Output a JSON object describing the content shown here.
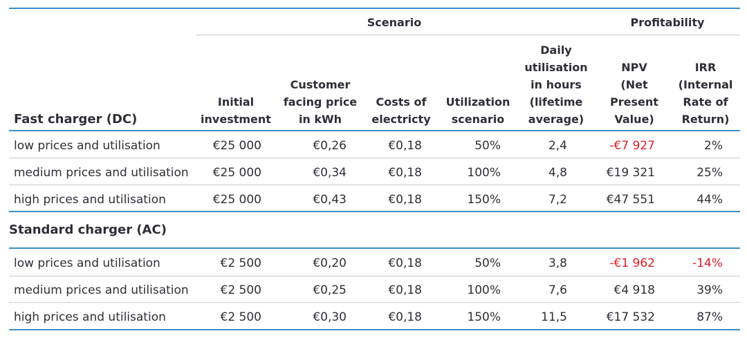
{
  "header": {
    "group_scenario": "Scenario",
    "group_profitability": "Profitability",
    "columns": [
      "Initial investment",
      "Customer facing price in kWh",
      "Costs of electricty",
      "Utilization scenario",
      "Daily utilisation in hours (lifetime average)",
      "NPV (Net Present Value)",
      "IRR (Internal Rate of Return)"
    ],
    "col_lines": [
      [
        "Initial",
        "investment"
      ],
      [
        "Customer",
        "facing price",
        "in kWh"
      ],
      [
        "Costs of",
        "electricty"
      ],
      [
        "Utilization",
        "scenario"
      ],
      [
        "Daily",
        "utilisation",
        "in hours",
        "(lifetime",
        "average)"
      ],
      [
        "NPV",
        "(Net",
        "Present",
        "Value)"
      ],
      [
        "IRR",
        "(Internal",
        "Rate of",
        "Return)"
      ]
    ]
  },
  "sections": [
    {
      "title": "Fast charger (DC)",
      "rows": [
        {
          "label": "low prices and utilisation",
          "investment": "€25 000",
          "price": "€0,26",
          "cost": "€0,18",
          "utilization": "50%",
          "hours": "2,4",
          "npv": "-€7 927",
          "irr": "2%",
          "npv_negative": true,
          "irr_negative": false
        },
        {
          "label": "medium prices and utilisation",
          "investment": "€25 000",
          "price": "€0,34",
          "cost": "€0,18",
          "utilization": "100%",
          "hours": "4,8",
          "npv": "€19 321",
          "irr": "25%",
          "npv_negative": false,
          "irr_negative": false
        },
        {
          "label": "high prices and utilisation",
          "investment": "€25 000",
          "price": "€0,43",
          "cost": "€0,18",
          "utilization": "150%",
          "hours": "7,2",
          "npv": "€47 551",
          "irr": "44%",
          "npv_negative": false,
          "irr_negative": false
        }
      ]
    },
    {
      "title": "Standard charger (AC)",
      "rows": [
        {
          "label": "low prices and utilisation",
          "investment": "€2 500",
          "price": "€0,20",
          "cost": "€0,18",
          "utilization": "50%",
          "hours": "3,8",
          "npv": "-€1 962",
          "irr": "-14%",
          "npv_negative": true,
          "irr_negative": true
        },
        {
          "label": "medium prices and utilisation",
          "investment": "€2 500",
          "price": "€0,25",
          "cost": "€0,18",
          "utilization": "100%",
          "hours": "7,6",
          "npv": "€4 918",
          "irr": "39%",
          "npv_negative": false,
          "irr_negative": false
        },
        {
          "label": "high prices and utilisation",
          "investment": "€2 500",
          "price": "€0,30",
          "cost": "€0,18",
          "utilization": "150%",
          "hours": "11,5",
          "npv": "€17 532",
          "irr": "87%",
          "npv_negative": false,
          "irr_negative": false
        }
      ]
    }
  ],
  "colors": {
    "rule_blue": "#3a8fc8",
    "rule_grey": "#c9c9cf",
    "negative": "#e0202a",
    "text": "#2e2e38"
  }
}
